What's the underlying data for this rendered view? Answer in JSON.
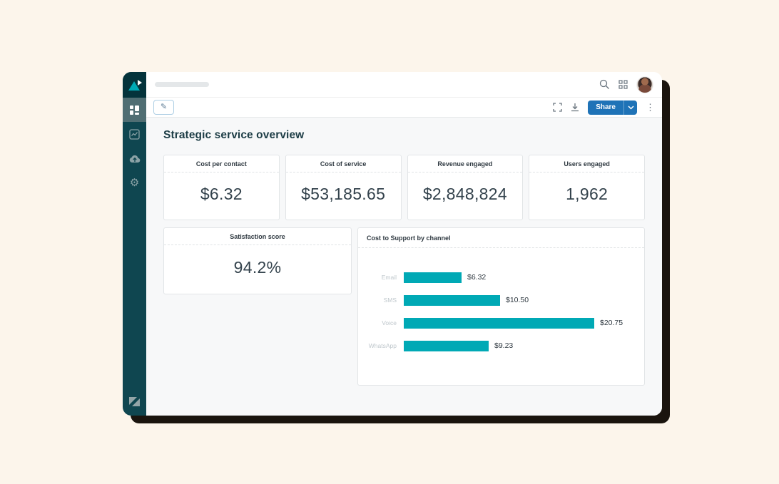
{
  "colors": {
    "canvas_background": "#fcf5eb",
    "sidebar": "#0f4650",
    "brand_teal": "#00a9b5",
    "share_blue": "#1f73b7",
    "content_background": "#f7f8f9",
    "text_dark": "#2f3941"
  },
  "sidebar": {
    "logo": "explore-logo",
    "items": [
      {
        "id": "dashboards",
        "icon": "dashboard-icon",
        "active": true
      },
      {
        "id": "reports",
        "icon": "line-chart-icon",
        "active": false
      },
      {
        "id": "datasets",
        "icon": "cloud-upload-icon",
        "active": false
      },
      {
        "id": "settings",
        "icon": "gear-icon",
        "active": false
      }
    ],
    "footer_logo": "zendesk-logo"
  },
  "topbar": {
    "skeleton_placeholder": "",
    "icons": [
      "search-icon",
      "app-grid-icon",
      "avatar"
    ]
  },
  "toolbar": {
    "edit_icon": "pencil-icon",
    "fullscreen_icon": "fullscreen-icon",
    "download_icon": "download-icon",
    "share_label": "Share",
    "share_caret_icon": "chevron-down-icon",
    "overflow_icon": "kebab-menu-icon"
  },
  "dashboard": {
    "title": "Strategic service overview",
    "metrics": [
      {
        "label": "Cost per contact",
        "value": "$6.32"
      },
      {
        "label": "Cost of service",
        "value": "$53,185.65"
      },
      {
        "label": "Revenue engaged",
        "value": "$2,848,824"
      },
      {
        "label": "Users engaged",
        "value": "1,962"
      }
    ],
    "satisfaction": {
      "label": "Satisfaction score",
      "value": "94.2%"
    }
  },
  "chart_data": {
    "type": "bar",
    "orientation": "horizontal",
    "title": "Cost to Support by channel",
    "categories": [
      "Email",
      "SMS",
      "Voice",
      "WhatsApp"
    ],
    "values": [
      6.32,
      10.5,
      20.75,
      9.23
    ],
    "value_labels": [
      "$6.32",
      "$10.50",
      "$20.75",
      "$9.23"
    ],
    "xlabel": "",
    "ylabel": "",
    "xlim": [
      0,
      21.8
    ],
    "grid": false,
    "legend": "none",
    "bar_color": "#00a9b5"
  }
}
